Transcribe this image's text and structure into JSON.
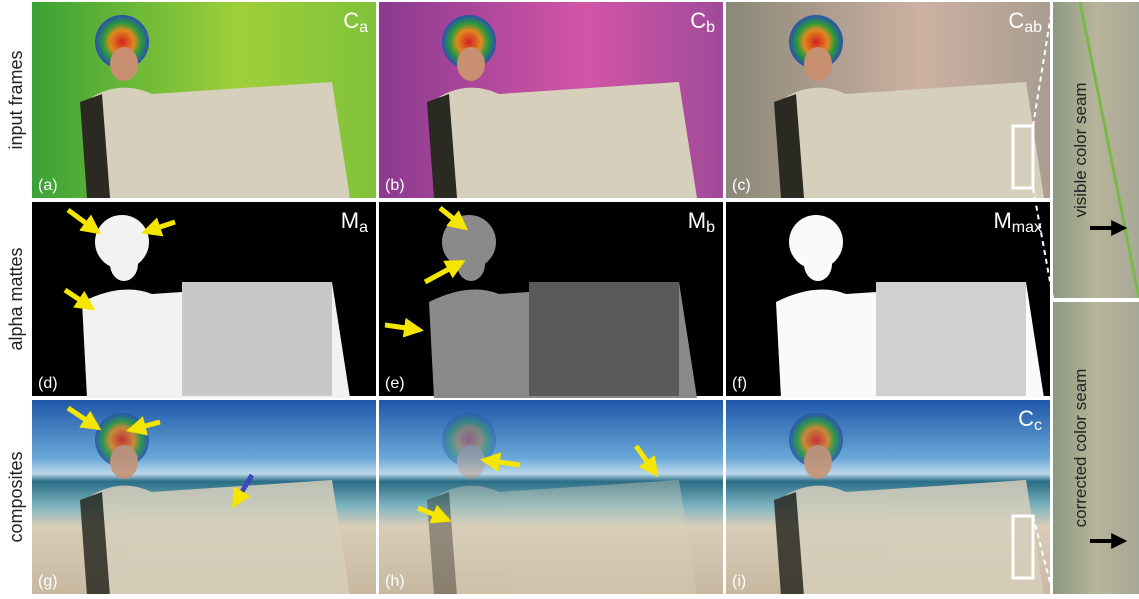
{
  "row_labels": [
    "input frames",
    "alpha mattes",
    "composites"
  ],
  "panels": [
    {
      "id": "(a)",
      "corner": {
        "base": "C",
        "sub": "a"
      }
    },
    {
      "id": "(b)",
      "corner": {
        "base": "C",
        "sub": "b"
      }
    },
    {
      "id": "(c)",
      "corner": {
        "base": "C",
        "sub": "ab"
      }
    },
    {
      "id": "(d)",
      "corner": {
        "base": "M",
        "sub": "a"
      }
    },
    {
      "id": "(e)",
      "corner": {
        "base": "M",
        "sub": "b"
      }
    },
    {
      "id": "(f)",
      "corner": {
        "base": "M",
        "sub": "max"
      }
    },
    {
      "id": "(g)"
    },
    {
      "id": "(h)"
    },
    {
      "id": "(i)",
      "corner": {
        "base": "C",
        "sub": "c"
      }
    }
  ],
  "zoom_labels": [
    "visible color seam",
    "corrected color seam"
  ]
}
